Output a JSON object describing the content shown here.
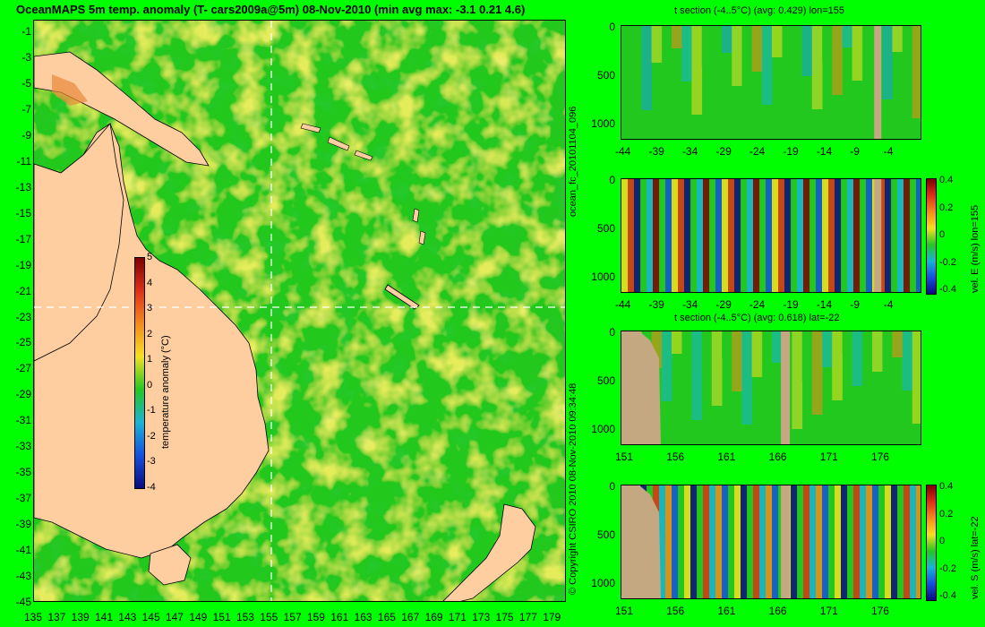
{
  "title": "OceanMAPS 5m temp. anomaly (T- cars2009a@5m) 08-Nov-2010 (min avg max: -3.1 0.21 4.6)",
  "map": {
    "lat_labels": [
      "-1",
      "-3",
      "-5",
      "-7",
      "-9",
      "-11",
      "-13",
      "-15",
      "-17",
      "-19",
      "-21",
      "-23",
      "-25",
      "-27",
      "-29",
      "-31",
      "-33",
      "-35",
      "-37",
      "-39",
      "-41",
      "-43",
      "-45"
    ],
    "lon_labels": [
      "135",
      "137",
      "139",
      "141",
      "143",
      "145",
      "147",
      "149",
      "151",
      "153",
      "155",
      "157",
      "159",
      "161",
      "163",
      "165",
      "167",
      "169",
      "171",
      "173",
      "175",
      "177",
      "179"
    ],
    "colorbar": {
      "label": "temperature anomaly (°C)",
      "ticks": [
        "5",
        "4",
        "3",
        "2",
        "1",
        "0",
        "-1",
        "-2",
        "-3",
        "-4"
      ]
    },
    "colors": {
      "land": "#fecda0",
      "ocean_base": "#22c81e",
      "warm": "#f2e020",
      "cool": "#12b4d4"
    }
  },
  "side": {
    "left_label_top": "ocean_fc_20101104_096",
    "left_label_bottom": "© Copyright CSIRO 2010   08-Nov-2010 09:34:48"
  },
  "panels": [
    {
      "title": "t section (-4..5°C) (avg: 0.429) lon=155",
      "y_ticks": [
        "0",
        "500",
        "1000"
      ],
      "x_ticks": [
        "-44",
        "-39",
        "-34",
        "-29",
        "-24",
        "-19",
        "-14",
        "-9",
        "-4"
      ],
      "colorbar": null
    },
    {
      "title": "",
      "y_ticks": [
        "0",
        "500",
        "1000"
      ],
      "x_ticks": [
        "-44",
        "-39",
        "-34",
        "-29",
        "-24",
        "-19",
        "-14",
        "-9",
        "-4"
      ],
      "colorbar": {
        "label": "vel. E (m/s) lon=155",
        "ticks": [
          "0.4",
          "0.2",
          "0",
          "-0.2",
          "-0.4"
        ]
      }
    },
    {
      "title": "t section (-4..5°C) (avg: 0.618) lat=-22",
      "y_ticks": [
        "0",
        "500",
        "1000"
      ],
      "x_ticks": [
        "151",
        "156",
        "161",
        "166",
        "171",
        "176"
      ],
      "colorbar": null
    },
    {
      "title": "",
      "y_ticks": [
        "0",
        "500",
        "1000"
      ],
      "x_ticks": [
        "151",
        "156",
        "161",
        "166",
        "171",
        "176"
      ],
      "colorbar": {
        "label": "vel. S (m/s) lat=-22",
        "ticks": [
          "0.4",
          "0.2",
          "0",
          "-0.2",
          "-0.4"
        ]
      }
    }
  ]
}
